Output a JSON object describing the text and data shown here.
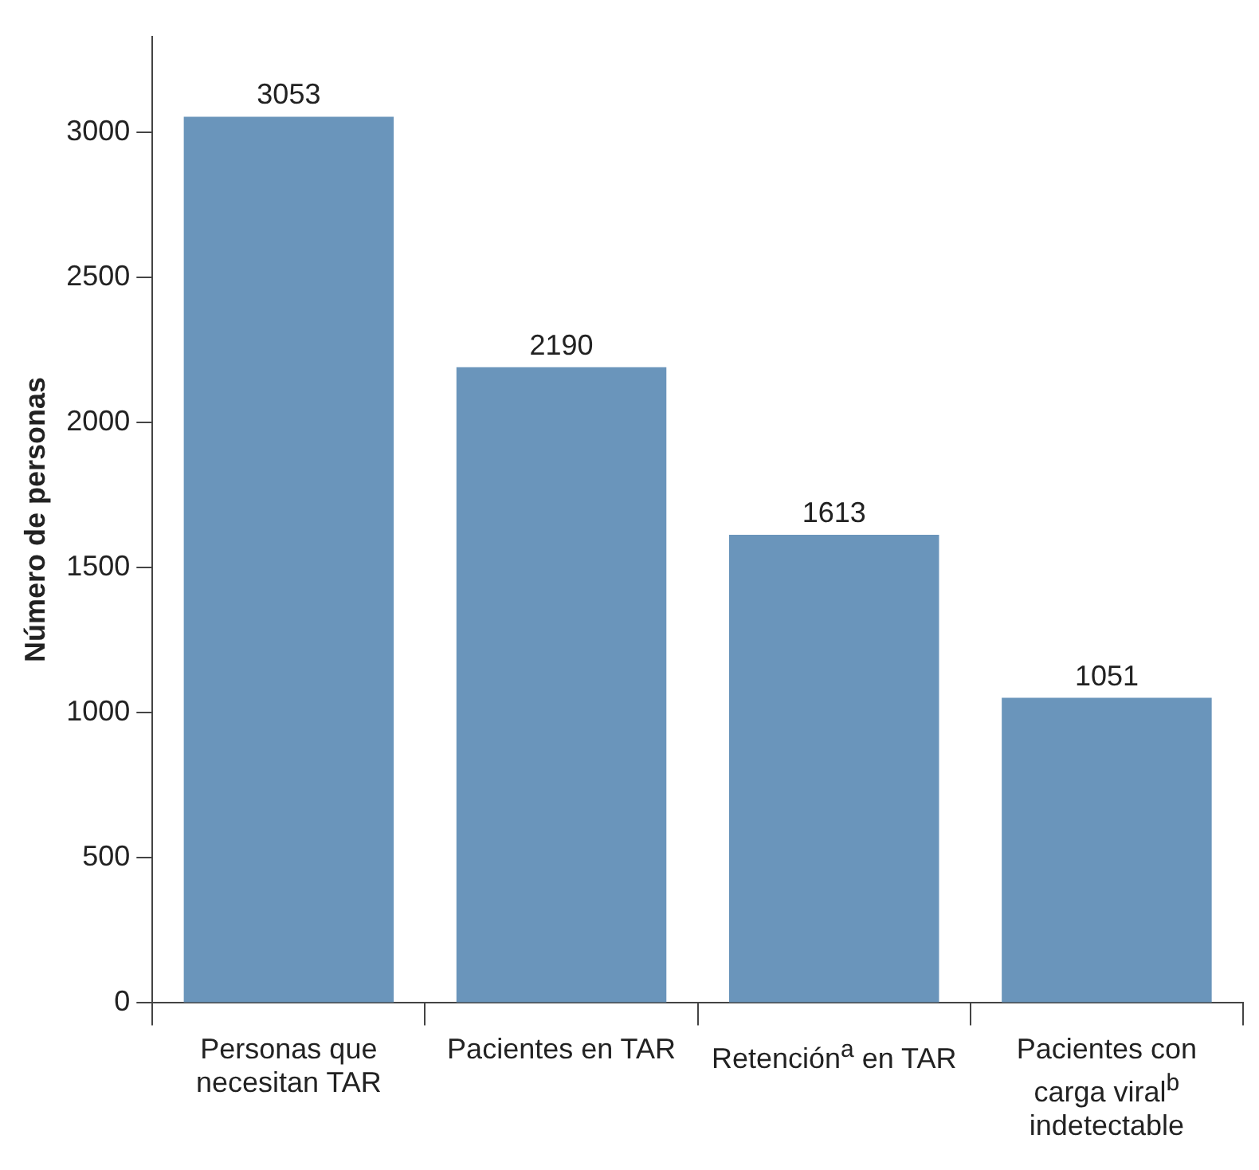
{
  "chart_data": {
    "type": "bar",
    "ylabel": "Número de personas",
    "categories": [
      "Personas que necesitan TAR",
      "Pacientes en TAR",
      "Retención$^{a}$ en TAR",
      "Pacientes con carga viral$^{b}$ indetectable"
    ],
    "values": [
      3053,
      2190,
      1613,
      1051
    ],
    "color": "#6a95bb",
    "ylim": [
      0,
      3330
    ],
    "yticks": [
      0,
      500,
      1000,
      1500,
      2000,
      2500,
      3000
    ],
    "grid": false,
    "data_labels": true
  }
}
